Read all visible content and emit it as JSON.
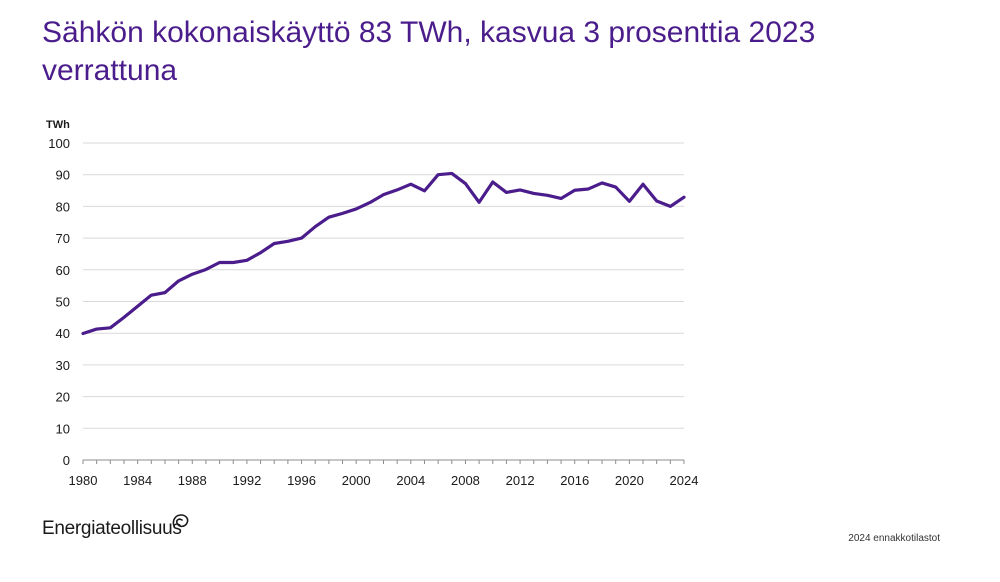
{
  "slide": {
    "title": "Sähkön kokonaiskäyttö 83 TWh, kasvua 3 prosenttia 2023 verrattuna",
    "logo_text": "Energiateollisuus",
    "footnote": "2024 ennakkotilastot"
  },
  "chart_data": {
    "type": "line",
    "ylabel": "TWh",
    "xlabel": "",
    "xlim": [
      1980,
      2024
    ],
    "ylim": [
      0,
      100
    ],
    "y_ticks": [
      0,
      10,
      20,
      30,
      40,
      50,
      60,
      70,
      80,
      90,
      100
    ],
    "x_ticks": [
      1980,
      1984,
      1988,
      1992,
      1996,
      2000,
      2004,
      2008,
      2012,
      2016,
      2020,
      2024
    ],
    "grid": "horizontal",
    "line_color": "#4b1d8c",
    "series": [
      {
        "x": [
          1980,
          1981,
          1982,
          1983,
          1984,
          1985,
          1986,
          1987,
          1988,
          1989,
          1990,
          1991,
          1992,
          1993,
          1994,
          1995,
          1996,
          1997,
          1998,
          1999,
          2000,
          2001,
          2002,
          2003,
          2004,
          2005,
          2006,
          2007,
          2008,
          2009,
          2010,
          2011,
          2012,
          2013,
          2014,
          2015,
          2016,
          2017,
          2018,
          2019,
          2020,
          2021,
          2022,
          2023,
          2024
        ],
        "values": [
          39.9,
          41.3,
          41.7,
          45.0,
          48.5,
          52.0,
          52.8,
          56.5,
          58.6,
          60.1,
          62.3,
          62.3,
          63.0,
          65.4,
          68.3,
          69.0,
          70.0,
          73.6,
          76.6,
          77.8,
          79.2,
          81.2,
          83.7,
          85.2,
          87.0,
          84.9,
          90.0,
          90.4,
          87.2,
          81.3,
          87.7,
          84.4,
          85.2,
          84.1,
          83.5,
          82.5,
          85.1,
          85.5,
          87.4,
          86.1,
          81.6,
          87.0,
          81.7,
          80.0,
          82.9
        ]
      }
    ]
  }
}
